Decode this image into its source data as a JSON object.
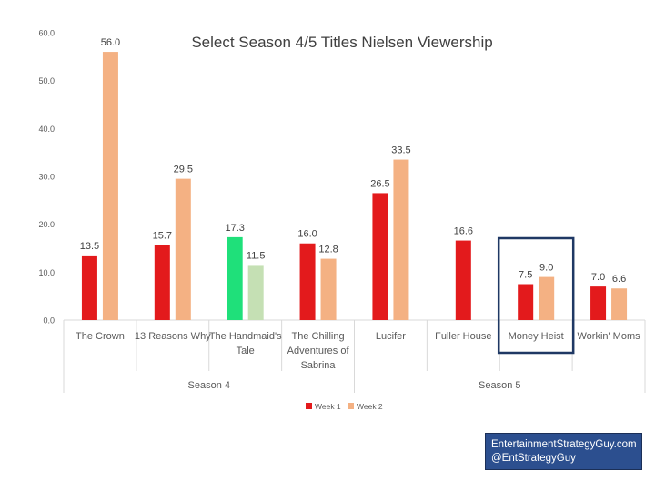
{
  "chart_data": {
    "type": "bar",
    "title": "Select Season 4/5 Titles Nielsen Viewership",
    "xlabel": "",
    "ylabel": "",
    "ylim": [
      0,
      60
    ],
    "yticks": [
      "0.0",
      "10.0",
      "20.0",
      "30.0",
      "40.0",
      "50.0",
      "60.0"
    ],
    "grid": false,
    "legend_position": "bottom",
    "categories": [
      {
        "lines": [
          "The Crown"
        ],
        "group": "Season 4"
      },
      {
        "lines": [
          "13 Reasons Why"
        ],
        "group": "Season 4"
      },
      {
        "lines": [
          "The Handmaid's",
          "Tale"
        ],
        "group": "Season 4"
      },
      {
        "lines": [
          "The Chilling",
          "Adventures of",
          "Sabrina"
        ],
        "group": "Season 4"
      },
      {
        "lines": [
          "Lucifer"
        ],
        "group": "Season 5"
      },
      {
        "lines": [
          "Fuller House"
        ],
        "group": "Season 5"
      },
      {
        "lines": [
          "Money Heist"
        ],
        "group": "Season 5"
      },
      {
        "lines": [
          "Workin' Moms"
        ],
        "group": "Season 5"
      }
    ],
    "groups": [
      "Season 4",
      "Season 5"
    ],
    "series": [
      {
        "name": "Week 1",
        "color": "#e31a1c",
        "values": [
          13.5,
          15.7,
          17.3,
          16.0,
          26.5,
          16.6,
          7.5,
          7.0
        ],
        "labels": [
          "13.5",
          "15.7",
          "17.3",
          "16.0",
          "26.5",
          "16.6",
          "7.5",
          "7.0"
        ]
      },
      {
        "name": "Week 2",
        "color": "#f4b183",
        "values": [
          56.0,
          29.5,
          11.5,
          12.8,
          33.5,
          null,
          9.0,
          6.6
        ],
        "labels": [
          "56.0",
          "29.5",
          "11.5",
          "12.8",
          "33.5",
          "",
          "9.0",
          "6.6"
        ]
      }
    ],
    "highlight_bar_colors": {
      "index": 2,
      "week1": "#1fe07a",
      "week2": "#c5e0b4"
    },
    "highlight_box": {
      "category_index": 6,
      "color": "#1f3864"
    }
  },
  "attribution": {
    "line1": "EntertainmentStrategyGuy.com",
    "line2": "@EntStrategyGuy",
    "background": "#2c4f8f"
  }
}
